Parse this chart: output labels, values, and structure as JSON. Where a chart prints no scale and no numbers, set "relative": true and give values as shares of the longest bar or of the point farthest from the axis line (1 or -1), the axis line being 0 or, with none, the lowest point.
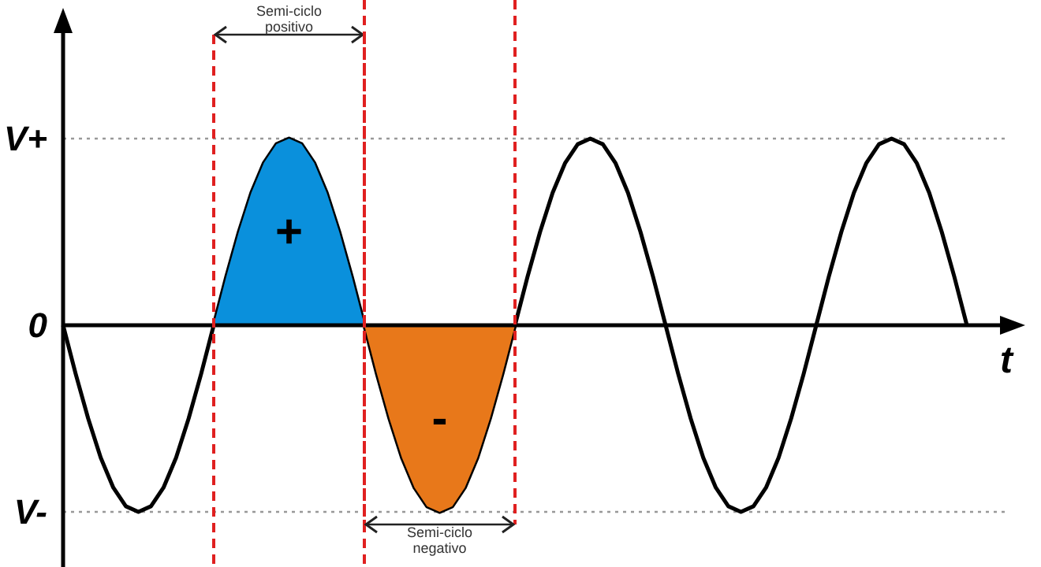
{
  "chart_data": {
    "type": "line",
    "xlabel": "t",
    "relative": true,
    "categories": [
      null,
      null,
      null,
      null,
      null,
      null,
      null,
      null,
      null,
      null,
      null,
      null,
      null,
      null,
      null,
      null,
      null,
      null,
      null,
      null,
      null,
      null,
      null,
      null,
      null,
      null,
      null,
      null,
      null,
      null,
      null,
      null,
      null,
      null,
      null,
      null,
      null,
      null,
      null,
      null,
      null,
      null,
      null,
      null,
      null,
      null,
      null,
      null,
      null,
      null,
      null,
      null,
      null,
      null,
      null,
      null,
      null,
      null,
      null,
      null,
      null,
      null,
      null,
      null,
      null,
      null,
      null,
      null,
      null,
      null,
      null,
      null,
      null
    ],
    "grid": true,
    "legend": false,
    "series": [
      {
        "color": "#000000",
        "values": [
          0,
          -0.26,
          -0.5,
          -0.71,
          -0.87,
          -0.97,
          -1,
          -0.97,
          -0.87,
          -0.71,
          -0.5,
          -0.26,
          0,
          0.26,
          0.5,
          0.71,
          0.87,
          0.97,
          1,
          0.97,
          0.87,
          0.71,
          0.5,
          0.26,
          0,
          -0.26,
          -0.5,
          -0.71,
          -0.87,
          -0.97,
          -1,
          -0.97,
          -0.87,
          -0.71,
          -0.5,
          -0.26,
          0,
          0.26,
          0.5,
          0.71,
          0.87,
          0.97,
          1,
          0.97,
          0.87,
          0.71,
          0.5,
          0.26,
          0,
          -0.26,
          -0.5,
          -0.71,
          -0.87,
          -0.97,
          -1,
          -0.97,
          -0.87,
          -0.71,
          -0.5,
          -0.26,
          0,
          0.26,
          0.5,
          0.71,
          0.87,
          0.97,
          1,
          0.97,
          0.87,
          0.71,
          0.5,
          0.26,
          0
        ]
      },
      {
        "type": "area",
        "name": "+",
        "color": "#0a90dc",
        "values": [
          null,
          null,
          null,
          null,
          null,
          null,
          null,
          null,
          null,
          null,
          null,
          null,
          0,
          0.26,
          0.5,
          0.71,
          0.87,
          0.97,
          1,
          0.97,
          0.87,
          0.71,
          0.5,
          0.26,
          0,
          null,
          null,
          null,
          null,
          null,
          null,
          null,
          null,
          null,
          null,
          null,
          null,
          null,
          null,
          null,
          null,
          null,
          null,
          null,
          null,
          null,
          null,
          null,
          null,
          null,
          null,
          null,
          null,
          null,
          null,
          null,
          null,
          null,
          null,
          null,
          null,
          null,
          null,
          null,
          null,
          null,
          null,
          null,
          null,
          null,
          null,
          null,
          null
        ]
      },
      {
        "type": "area",
        "name": "-",
        "color": "#e8781a",
        "values": [
          null,
          null,
          null,
          null,
          null,
          null,
          null,
          null,
          null,
          null,
          null,
          null,
          null,
          null,
          null,
          null,
          null,
          null,
          null,
          null,
          null,
          null,
          null,
          null,
          0,
          -0.26,
          -0.5,
          -0.71,
          -0.87,
          -0.97,
          -1,
          -0.97,
          -0.87,
          -0.71,
          -0.5,
          -0.26,
          0,
          null,
          null,
          null,
          null,
          null,
          null,
          null,
          null,
          null,
          null,
          null,
          null,
          null,
          null,
          null,
          null,
          null,
          null,
          null,
          null,
          null,
          null,
          null,
          null,
          null,
          null,
          null,
          null,
          null,
          null,
          null,
          null,
          null,
          null,
          null,
          null
        ]
      }
    ],
    "ref_lines": [
      {
        "axis": "y",
        "value": 1,
        "label": "V+",
        "color": "#999999",
        "line_style": "dotted"
      },
      {
        "axis": "y",
        "value": -1,
        "label": "V-",
        "color": "#999999",
        "line_style": "dotted"
      }
    ],
    "annotations": [
      "0",
      "Semi-ciclo positivo",
      "Semi-ciclo negativo"
    ]
  }
}
